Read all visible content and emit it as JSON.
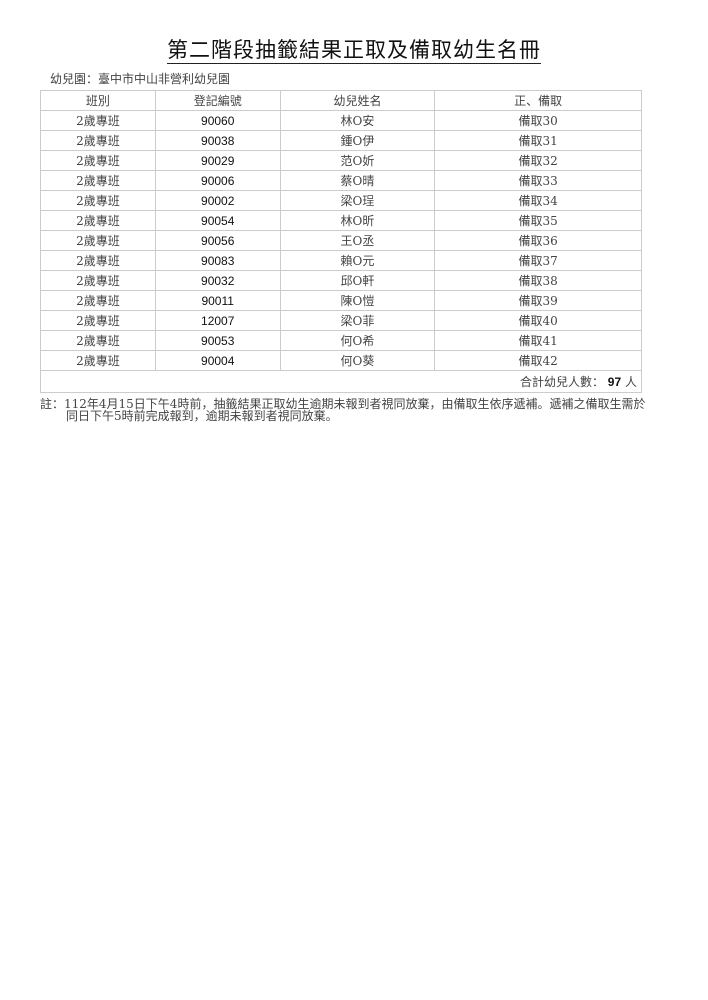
{
  "title": "第二階段抽籤結果正取及備取幼生名冊",
  "kindergarten_label": "幼兒園：臺中市中山非營利幼兒園",
  "headers": [
    "班別",
    "登記編號",
    "幼兒姓名",
    "正、備取"
  ],
  "rows": [
    [
      "2歲專班",
      "90060",
      "林O安",
      "備取30"
    ],
    [
      "2歲專班",
      "90038",
      "鍾O伊",
      "備取31"
    ],
    [
      "2歲專班",
      "90029",
      "范O妡",
      "備取32"
    ],
    [
      "2歲專班",
      "90006",
      "蔡O晴",
      "備取33"
    ],
    [
      "2歲專班",
      "90002",
      "梁O珵",
      "備取34"
    ],
    [
      "2歲專班",
      "90054",
      "林O昕",
      "備取35"
    ],
    [
      "2歲專班",
      "90056",
      "王O丞",
      "備取36"
    ],
    [
      "2歲專班",
      "90083",
      "賴O元",
      "備取37"
    ],
    [
      "2歲專班",
      "90032",
      "邱O軒",
      "備取38"
    ],
    [
      "2歲專班",
      "90011",
      "陳O愷",
      "備取39"
    ],
    [
      "2歲專班",
      "12007",
      "梁O菲",
      "備取40"
    ],
    [
      "2歲專班",
      "90053",
      "何O希",
      "備取41"
    ],
    [
      "2歲專班",
      "90004",
      "何O葵",
      "備取42"
    ]
  ],
  "total": {
    "label": "合計幼兒人數：",
    "count": "97",
    "unit": "人"
  },
  "note": {
    "line1": "註：112年4月15日下午4時前，抽籤結果正取幼生逾期未報到者視同放棄，由備取生依序遞補。遞補之備取生需於",
    "line2": "同日下午5時前完成報到，逾期未報到者視同放棄。"
  }
}
